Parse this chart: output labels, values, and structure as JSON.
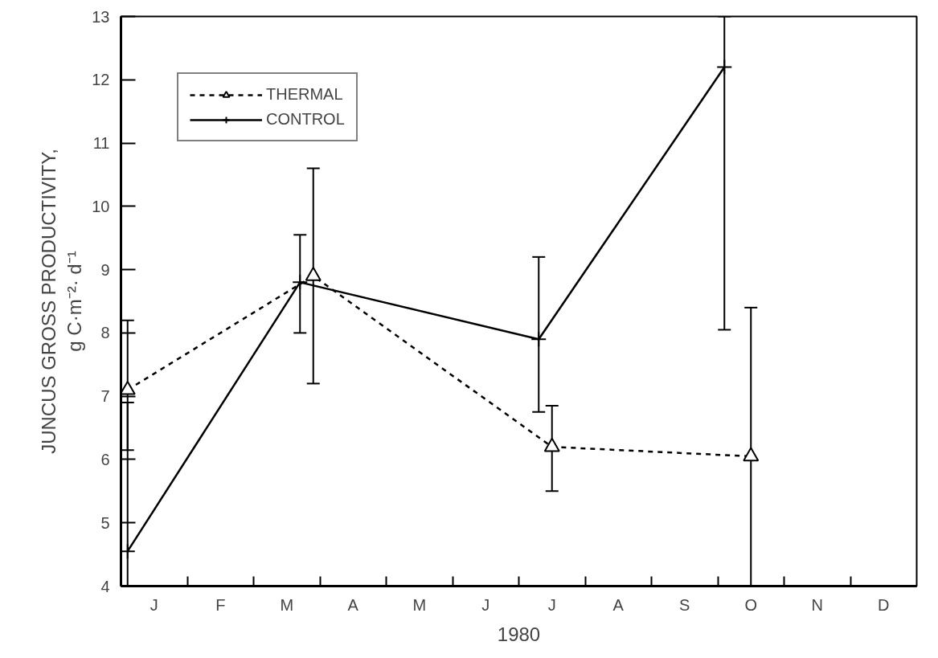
{
  "chart_data": {
    "type": "line",
    "xlabel": "1980",
    "ylabel": "JUNCUS GROSS PRODUCTIVITY,\ng C·m⁻²· d⁻¹",
    "categories": [
      null,
      null,
      "J",
      null,
      null,
      null,
      null,
      "F",
      null,
      null,
      null,
      null,
      "M",
      null,
      null,
      null,
      null,
      "A",
      null,
      null,
      null,
      null,
      "M",
      null,
      null,
      null,
      null,
      "J",
      null,
      null,
      null,
      null,
      "J",
      null,
      null,
      null,
      null,
      "A",
      null,
      null,
      null,
      null,
      "S",
      null,
      null,
      null,
      null,
      "O",
      null,
      null,
      null,
      null,
      "N",
      null,
      null,
      null,
      null,
      "D",
      null,
      null
    ],
    "ylim": [
      4,
      13
    ],
    "yticks": [
      4,
      5,
      6,
      7,
      8,
      9,
      10,
      11,
      12,
      13
    ],
    "grid": false,
    "legend": "top left",
    "series": [
      {
        "name": "THERMAL",
        "color": "#000000",
        "marker": "triangle",
        "line_style": "dashed",
        "values": [
          7.1,
          null,
          null,
          null,
          null,
          null,
          null,
          null,
          null,
          null,
          null,
          null,
          null,
          null,
          8.9,
          null,
          null,
          null,
          null,
          null,
          null,
          null,
          null,
          null,
          null,
          null,
          null,
          null,
          null,
          null,
          null,
          null,
          6.2,
          null,
          null,
          null,
          null,
          null,
          null,
          null,
          null,
          null,
          null,
          null,
          null,
          null,
          null,
          6.05,
          null,
          null,
          null,
          null,
          null,
          null,
          null,
          null,
          null,
          null,
          null,
          null
        ],
        "errors": [
          [
            6.15,
            8.2
          ],
          null,
          null,
          null,
          null,
          null,
          null,
          null,
          null,
          null,
          null,
          null,
          null,
          null,
          [
            7.2,
            10.6
          ],
          null,
          null,
          null,
          null,
          null,
          null,
          null,
          null,
          null,
          null,
          null,
          null,
          null,
          null,
          null,
          null,
          null,
          [
            5.5,
            6.85
          ],
          null,
          null,
          null,
          null,
          null,
          null,
          null,
          null,
          null,
          null,
          null,
          null,
          null,
          null,
          [
            4,
            8.4
          ],
          null,
          null,
          null,
          null,
          null,
          null,
          null,
          null,
          null,
          null,
          null,
          null
        ]
      },
      {
        "name": "CONTROL",
        "color": "#000000",
        "marker": "cross",
        "line_style": "solid",
        "values": [
          4.55,
          null,
          null,
          null,
          null,
          null,
          null,
          null,
          null,
          null,
          null,
          null,
          null,
          8.8,
          null,
          null,
          null,
          null,
          null,
          null,
          null,
          null,
          null,
          null,
          null,
          null,
          null,
          null,
          null,
          null,
          null,
          7.9,
          null,
          null,
          null,
          null,
          null,
          null,
          null,
          null,
          null,
          null,
          null,
          null,
          null,
          12.2,
          null,
          null,
          null,
          null,
          null,
          null,
          null,
          null,
          null,
          null,
          null,
          null,
          null,
          null
        ],
        "errors": [
          [
            4,
            6.9
          ],
          null,
          null,
          null,
          null,
          null,
          null,
          null,
          null,
          null,
          null,
          null,
          null,
          [
            8.0,
            9.55
          ],
          null,
          null,
          null,
          null,
          null,
          null,
          null,
          null,
          null,
          null,
          null,
          null,
          null,
          null,
          null,
          null,
          null,
          [
            6.75,
            9.2
          ],
          null,
          null,
          null,
          null,
          null,
          null,
          null,
          null,
          null,
          null,
          null,
          null,
          null,
          [
            8.05,
            13
          ],
          null,
          null,
          null,
          null,
          null,
          null,
          null,
          null,
          null,
          null,
          null,
          null,
          null,
          null
        ]
      }
    ]
  }
}
